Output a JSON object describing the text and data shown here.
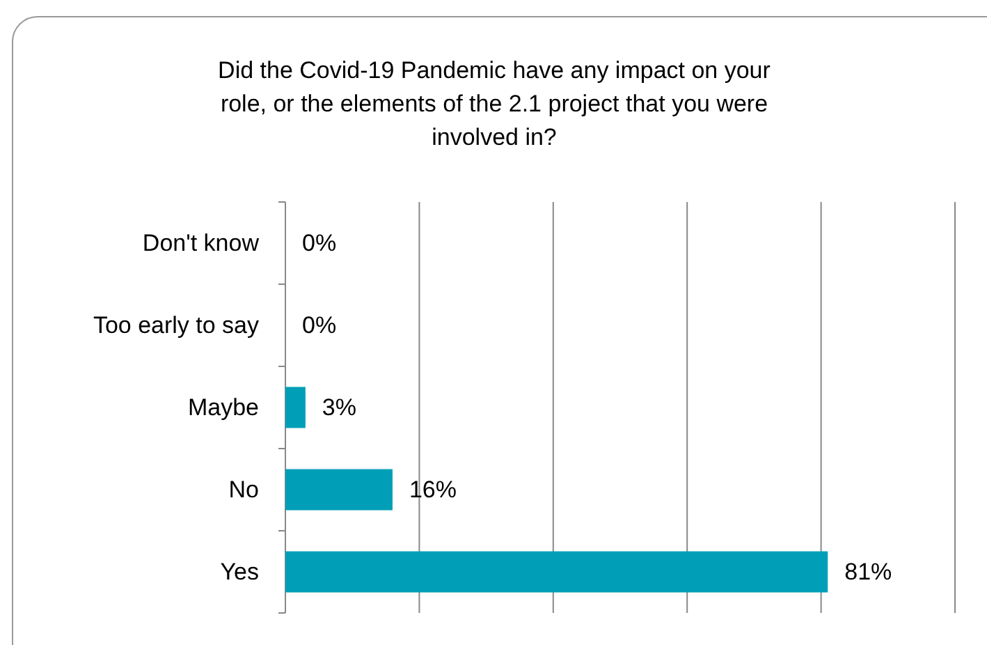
{
  "chart_data": {
    "type": "bar",
    "orientation": "horizontal",
    "title": "Did the Covid-19 Pandemic have any impact on your role, or the elements of the 2.1 project that you were involved in?",
    "categories": [
      "Don't know",
      "Too early to say",
      "Maybe",
      "No",
      "Yes"
    ],
    "values": [
      0,
      0,
      3,
      16,
      81
    ],
    "value_labels": [
      "0%",
      "0%",
      "3%",
      "16%",
      "81%"
    ],
    "color": "#009fb7",
    "xlim": [
      0,
      100
    ],
    "xticks": [
      {
        "value": 0,
        "label": null
      },
      {
        "value": 20,
        "label": null
      },
      {
        "value": 40,
        "label": null
      },
      {
        "value": 60,
        "label": null
      },
      {
        "value": 80,
        "label": null
      },
      {
        "value": 100,
        "label": null
      }
    ],
    "tick_labels": "y",
    "grid": "x"
  }
}
